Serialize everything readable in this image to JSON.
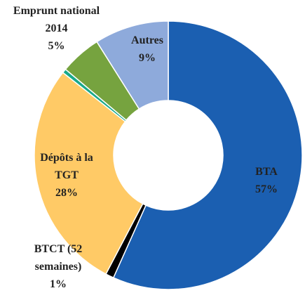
{
  "chart_data": {
    "type": "donut",
    "categories": [
      "BTA",
      "BTCT (52 semaines)",
      "Dépôts à la TGT",
      null,
      "Emprunt national 2014",
      "Autres"
    ],
    "values": [
      57,
      1,
      28,
      0.5,
      5,
      9
    ],
    "value_labels": [
      "57%",
      "1%",
      "28%",
      null,
      "5%",
      "9%"
    ],
    "colors": [
      "#1b5fb1",
      "#000000",
      "#ffca66",
      "#19a98b",
      "#76a33f",
      "#8eaadb"
    ]
  }
}
